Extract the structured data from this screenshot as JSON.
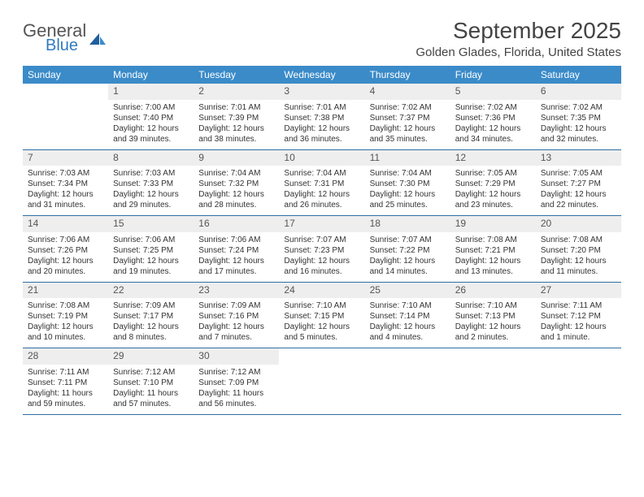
{
  "logo": {
    "text1": "General",
    "text2": "Blue"
  },
  "title": "September 2025",
  "location": "Golden Glades, Florida, United States",
  "colors": {
    "header_bg": "#3b8bc9",
    "row_divider": "#2f6fa3",
    "daynum_bg": "#eeeeee",
    "text": "#333333"
  },
  "daysOfWeek": [
    "Sunday",
    "Monday",
    "Tuesday",
    "Wednesday",
    "Thursday",
    "Friday",
    "Saturday"
  ],
  "weeks": [
    [
      {
        "n": "",
        "sr": "",
        "ss": "",
        "dl": ""
      },
      {
        "n": "1",
        "sr": "Sunrise: 7:00 AM",
        "ss": "Sunset: 7:40 PM",
        "dl": "Daylight: 12 hours and 39 minutes."
      },
      {
        "n": "2",
        "sr": "Sunrise: 7:01 AM",
        "ss": "Sunset: 7:39 PM",
        "dl": "Daylight: 12 hours and 38 minutes."
      },
      {
        "n": "3",
        "sr": "Sunrise: 7:01 AM",
        "ss": "Sunset: 7:38 PM",
        "dl": "Daylight: 12 hours and 36 minutes."
      },
      {
        "n": "4",
        "sr": "Sunrise: 7:02 AM",
        "ss": "Sunset: 7:37 PM",
        "dl": "Daylight: 12 hours and 35 minutes."
      },
      {
        "n": "5",
        "sr": "Sunrise: 7:02 AM",
        "ss": "Sunset: 7:36 PM",
        "dl": "Daylight: 12 hours and 34 minutes."
      },
      {
        "n": "6",
        "sr": "Sunrise: 7:02 AM",
        "ss": "Sunset: 7:35 PM",
        "dl": "Daylight: 12 hours and 32 minutes."
      }
    ],
    [
      {
        "n": "7",
        "sr": "Sunrise: 7:03 AM",
        "ss": "Sunset: 7:34 PM",
        "dl": "Daylight: 12 hours and 31 minutes."
      },
      {
        "n": "8",
        "sr": "Sunrise: 7:03 AM",
        "ss": "Sunset: 7:33 PM",
        "dl": "Daylight: 12 hours and 29 minutes."
      },
      {
        "n": "9",
        "sr": "Sunrise: 7:04 AM",
        "ss": "Sunset: 7:32 PM",
        "dl": "Daylight: 12 hours and 28 minutes."
      },
      {
        "n": "10",
        "sr": "Sunrise: 7:04 AM",
        "ss": "Sunset: 7:31 PM",
        "dl": "Daylight: 12 hours and 26 minutes."
      },
      {
        "n": "11",
        "sr": "Sunrise: 7:04 AM",
        "ss": "Sunset: 7:30 PM",
        "dl": "Daylight: 12 hours and 25 minutes."
      },
      {
        "n": "12",
        "sr": "Sunrise: 7:05 AM",
        "ss": "Sunset: 7:29 PM",
        "dl": "Daylight: 12 hours and 23 minutes."
      },
      {
        "n": "13",
        "sr": "Sunrise: 7:05 AM",
        "ss": "Sunset: 7:27 PM",
        "dl": "Daylight: 12 hours and 22 minutes."
      }
    ],
    [
      {
        "n": "14",
        "sr": "Sunrise: 7:06 AM",
        "ss": "Sunset: 7:26 PM",
        "dl": "Daylight: 12 hours and 20 minutes."
      },
      {
        "n": "15",
        "sr": "Sunrise: 7:06 AM",
        "ss": "Sunset: 7:25 PM",
        "dl": "Daylight: 12 hours and 19 minutes."
      },
      {
        "n": "16",
        "sr": "Sunrise: 7:06 AM",
        "ss": "Sunset: 7:24 PM",
        "dl": "Daylight: 12 hours and 17 minutes."
      },
      {
        "n": "17",
        "sr": "Sunrise: 7:07 AM",
        "ss": "Sunset: 7:23 PM",
        "dl": "Daylight: 12 hours and 16 minutes."
      },
      {
        "n": "18",
        "sr": "Sunrise: 7:07 AM",
        "ss": "Sunset: 7:22 PM",
        "dl": "Daylight: 12 hours and 14 minutes."
      },
      {
        "n": "19",
        "sr": "Sunrise: 7:08 AM",
        "ss": "Sunset: 7:21 PM",
        "dl": "Daylight: 12 hours and 13 minutes."
      },
      {
        "n": "20",
        "sr": "Sunrise: 7:08 AM",
        "ss": "Sunset: 7:20 PM",
        "dl": "Daylight: 12 hours and 11 minutes."
      }
    ],
    [
      {
        "n": "21",
        "sr": "Sunrise: 7:08 AM",
        "ss": "Sunset: 7:19 PM",
        "dl": "Daylight: 12 hours and 10 minutes."
      },
      {
        "n": "22",
        "sr": "Sunrise: 7:09 AM",
        "ss": "Sunset: 7:17 PM",
        "dl": "Daylight: 12 hours and 8 minutes."
      },
      {
        "n": "23",
        "sr": "Sunrise: 7:09 AM",
        "ss": "Sunset: 7:16 PM",
        "dl": "Daylight: 12 hours and 7 minutes."
      },
      {
        "n": "24",
        "sr": "Sunrise: 7:10 AM",
        "ss": "Sunset: 7:15 PM",
        "dl": "Daylight: 12 hours and 5 minutes."
      },
      {
        "n": "25",
        "sr": "Sunrise: 7:10 AM",
        "ss": "Sunset: 7:14 PM",
        "dl": "Daylight: 12 hours and 4 minutes."
      },
      {
        "n": "26",
        "sr": "Sunrise: 7:10 AM",
        "ss": "Sunset: 7:13 PM",
        "dl": "Daylight: 12 hours and 2 minutes."
      },
      {
        "n": "27",
        "sr": "Sunrise: 7:11 AM",
        "ss": "Sunset: 7:12 PM",
        "dl": "Daylight: 12 hours and 1 minute."
      }
    ],
    [
      {
        "n": "28",
        "sr": "Sunrise: 7:11 AM",
        "ss": "Sunset: 7:11 PM",
        "dl": "Daylight: 11 hours and 59 minutes."
      },
      {
        "n": "29",
        "sr": "Sunrise: 7:12 AM",
        "ss": "Sunset: 7:10 PM",
        "dl": "Daylight: 11 hours and 57 minutes."
      },
      {
        "n": "30",
        "sr": "Sunrise: 7:12 AM",
        "ss": "Sunset: 7:09 PM",
        "dl": "Daylight: 11 hours and 56 minutes."
      },
      {
        "n": "",
        "sr": "",
        "ss": "",
        "dl": ""
      },
      {
        "n": "",
        "sr": "",
        "ss": "",
        "dl": ""
      },
      {
        "n": "",
        "sr": "",
        "ss": "",
        "dl": ""
      },
      {
        "n": "",
        "sr": "",
        "ss": "",
        "dl": ""
      }
    ]
  ]
}
